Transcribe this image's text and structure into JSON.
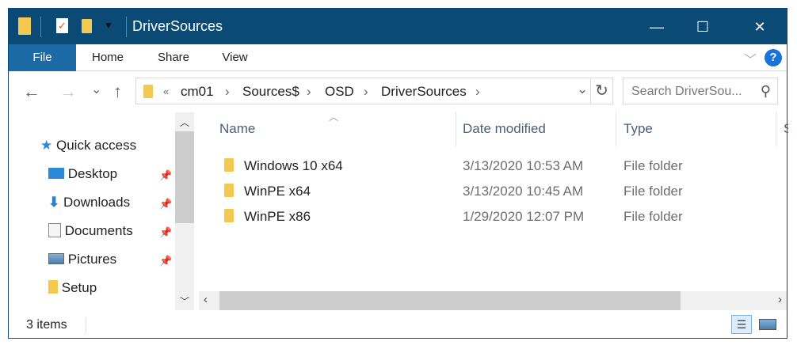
{
  "window": {
    "title": "DriverSources",
    "minimize": "—",
    "maximize": "☐",
    "close": "✕"
  },
  "ribbon": {
    "tabs": [
      "File",
      "Home",
      "Share",
      "View"
    ],
    "help": "?",
    "expand": "﹀"
  },
  "nav": {
    "back": "←",
    "forward": "→",
    "recent": "⌄",
    "up": "↑"
  },
  "address": {
    "overflow": "«",
    "crumbs": [
      "cm01",
      "Sources$",
      "OSD",
      "DriverSources"
    ],
    "separator": "›",
    "dropdown": "⌄",
    "refresh": "↻"
  },
  "search": {
    "placeholder": "Search DriverSou...",
    "icon": "⚲"
  },
  "sidebar": {
    "items": [
      {
        "label": "Quick access",
        "icon": "star-icon",
        "pinned": false
      },
      {
        "label": "Desktop",
        "icon": "desktop-icon",
        "pinned": true
      },
      {
        "label": "Downloads",
        "icon": "download-icon",
        "pinned": true
      },
      {
        "label": "Documents",
        "icon": "documents-icon",
        "pinned": true
      },
      {
        "label": "Pictures",
        "icon": "pictures-icon",
        "pinned": true
      },
      {
        "label": "Setup",
        "icon": "folder-icon",
        "pinned": false
      }
    ]
  },
  "columns": [
    "Name",
    "Date modified",
    "Type",
    "S"
  ],
  "files": [
    {
      "name": "Windows 10 x64",
      "date": "3/13/2020 10:53 AM",
      "type": "File folder"
    },
    {
      "name": "WinPE x64",
      "date": "3/13/2020 10:45 AM",
      "type": "File folder"
    },
    {
      "name": "WinPE x86",
      "date": "1/29/2020 12:07 PM",
      "type": "File folder"
    }
  ],
  "status": {
    "items": "3 items"
  },
  "colors": {
    "titlebar": "#0b4a75",
    "file_tab": "#1c6aa5",
    "folder": "#f3c94f"
  }
}
